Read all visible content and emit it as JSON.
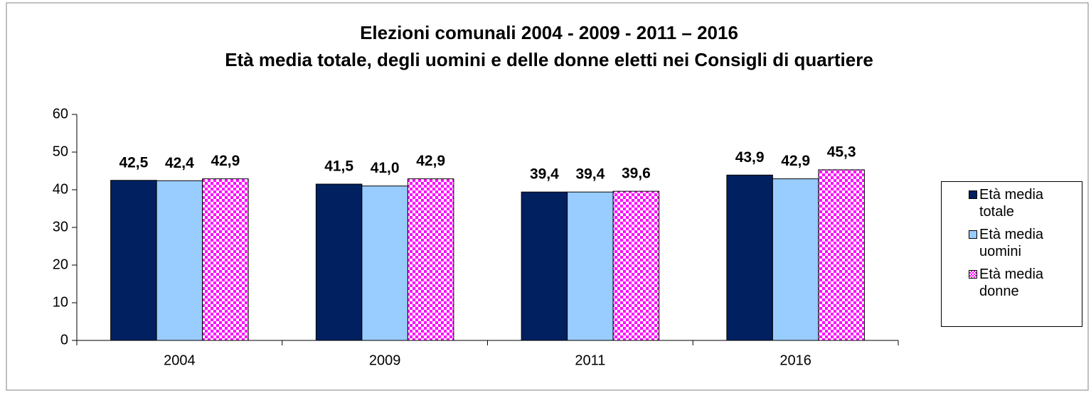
{
  "chart_data": {
    "type": "bar",
    "title": "Elezioni comunali 2004 - 2009 - 2011 – 2016",
    "subtitle": "Età media totale, degli uomini e delle donne eletti nei Consigli di quartiere",
    "categories": [
      "2004",
      "2009",
      "2011",
      "2016"
    ],
    "series": [
      {
        "name": "Età media totale",
        "color": "#002060",
        "values": [
          42.5,
          41.5,
          39.4,
          43.9
        ],
        "value_labels": [
          "42,5",
          "41,5",
          "39,4",
          "43,9"
        ]
      },
      {
        "name": "Età media uomini",
        "color": "#99ccff",
        "values": [
          42.4,
          41.0,
          39.4,
          42.9
        ],
        "value_labels": [
          "42,4",
          "41,0",
          "39,4",
          "42,9"
        ]
      },
      {
        "name": "Età media donne",
        "color": "#ff00ff",
        "pattern": "checkerboard",
        "values": [
          42.9,
          42.9,
          39.6,
          45.3
        ],
        "value_labels": [
          "42,9",
          "42,9",
          "39,6",
          "45,3"
        ]
      }
    ],
    "ylim": [
      0,
      60
    ],
    "yticks": [
      0,
      10,
      20,
      30,
      40,
      50,
      60
    ],
    "grid": false,
    "legend": "right"
  }
}
